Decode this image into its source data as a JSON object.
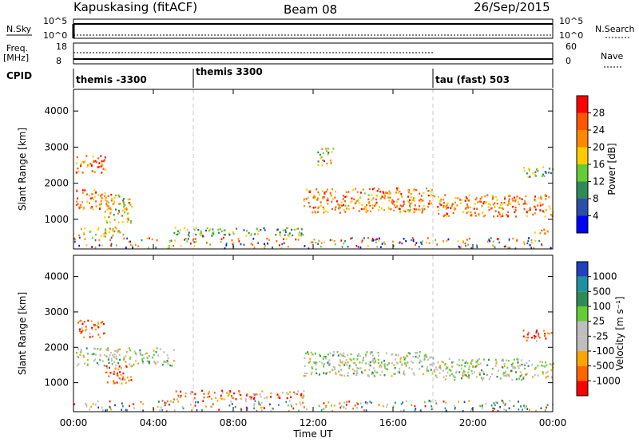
{
  "header": {
    "radar": "Kapuskasing (fitACF)",
    "beam": "Beam 08",
    "date": "26/Sep/2015"
  },
  "top_panels": {
    "nsky_label": "N.Sky",
    "nsky_ticks": [
      "10^5",
      "10^0"
    ],
    "nsearch_label": "N.Search",
    "nsearch_ticks": [
      "10^5",
      "10^0"
    ],
    "freq_label": "Freq.",
    "freq_unit": "[MHz]",
    "freq_ticks": [
      "18",
      "8"
    ],
    "nave_label": "Nave",
    "nave_ticks": [
      "60",
      "0"
    ],
    "cpid_label": "CPID",
    "cpid_segments": [
      {
        "label": "themis -3300",
        "start_hour": 0
      },
      {
        "label": "themis 3300",
        "start_hour": 6
      },
      {
        "label": "tau (fast) 503",
        "start_hour": 18
      }
    ]
  },
  "chart_data": [
    {
      "type": "heatmap",
      "name": "Power",
      "xlabel": "",
      "ylabel": "Slant Range [km]",
      "xlim": [
        0,
        24
      ],
      "ylim": [
        180,
        4600
      ],
      "yticks": [
        1000,
        2000,
        3000,
        4000
      ],
      "colorbar": {
        "label": "Power [dB]",
        "ticks": [
          "28",
          "24",
          "20",
          "16",
          "12",
          "8",
          "4"
        ],
        "colors": [
          "#0000ff",
          "#2b4fa8",
          "#2e8b57",
          "#66cc33",
          "#ffcc00",
          "#ff8800",
          "#ff5500",
          "#ff0000"
        ]
      },
      "regions": [
        {
          "t0": 0.1,
          "t1": 1.9,
          "r0": 1300,
          "r1": 1850,
          "level": 0.75
        },
        {
          "t0": 0.1,
          "t1": 1.6,
          "r0": 2300,
          "r1": 2800,
          "level": 0.8
        },
        {
          "t0": 1.5,
          "t1": 2.9,
          "r0": 900,
          "r1": 1700,
          "level": 0.55
        },
        {
          "t0": 0.2,
          "t1": 2.5,
          "r0": 550,
          "r1": 800,
          "level": 0.6
        },
        {
          "t0": 5.0,
          "t1": 11.5,
          "r0": 550,
          "r1": 800,
          "level": 0.4
        },
        {
          "t0": 11.5,
          "t1": 18.0,
          "r0": 1200,
          "r1": 1900,
          "level": 0.7
        },
        {
          "t0": 18.0,
          "t1": 24.0,
          "r0": 1100,
          "r1": 1700,
          "level": 0.72
        },
        {
          "t0": 12.2,
          "t1": 13.0,
          "r0": 2500,
          "r1": 3000,
          "level": 0.45
        },
        {
          "t0": 22.5,
          "t1": 24.0,
          "r0": 2200,
          "r1": 2500,
          "level": 0.4
        },
        {
          "t0": 23.0,
          "t1": 24.0,
          "r0": 600,
          "r1": 750,
          "level": 0.7
        }
      ]
    },
    {
      "type": "heatmap",
      "name": "Velocity",
      "xlabel": "Time UT",
      "ylabel": "Slant Range [km]",
      "xlim": [
        0,
        24
      ],
      "ylim": [
        180,
        4600
      ],
      "xticks": [
        "00:00",
        "04:00",
        "08:00",
        "12:00",
        "16:00",
        "20:00",
        "00:00"
      ],
      "yticks": [
        1000,
        2000,
        3000,
        4000
      ],
      "colorbar": {
        "label": "Velocity [m s⁻¹]",
        "ticks": [
          "1000",
          "500",
          "100",
          "25",
          "-25",
          "-100",
          "-500",
          "-1000"
        ],
        "colors": [
          "#ff0000",
          "#ff6600",
          "#ffa500",
          "#bebebe",
          "#bebebe",
          "#66cc33",
          "#2e8b57",
          "#1e90a0",
          "#2040c0"
        ]
      },
      "regions": [
        {
          "t0": 0.1,
          "t1": 5.0,
          "r0": 1500,
          "r1": 2000,
          "level": 0.5
        },
        {
          "t0": 0.2,
          "t1": 1.6,
          "r0": 2300,
          "r1": 2800,
          "level": 0.15
        },
        {
          "t0": 1.5,
          "t1": 2.9,
          "r0": 1000,
          "r1": 1500,
          "level": 0.15
        },
        {
          "t0": 5.0,
          "t1": 11.5,
          "r0": 550,
          "r1": 800,
          "level": 0.2
        },
        {
          "t0": 11.5,
          "t1": 18.0,
          "r0": 1200,
          "r1": 1900,
          "level": 0.5
        },
        {
          "t0": 18.0,
          "t1": 24.0,
          "r0": 1100,
          "r1": 1700,
          "level": 0.5
        },
        {
          "t0": 22.5,
          "t1": 24.0,
          "r0": 2200,
          "r1": 2500,
          "level": 0.15
        }
      ]
    }
  ]
}
